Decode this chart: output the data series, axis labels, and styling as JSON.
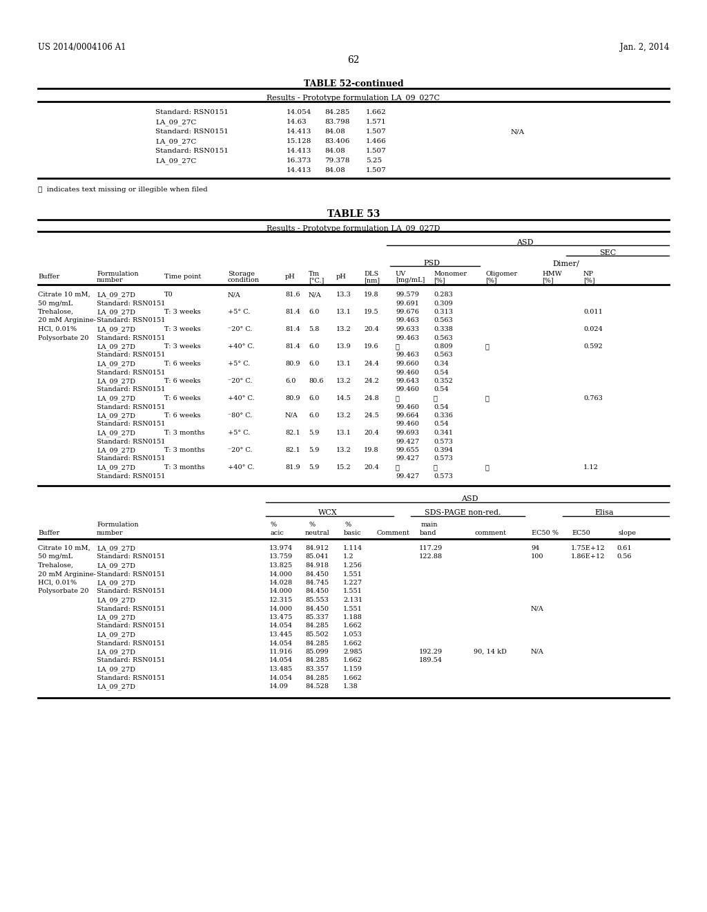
{
  "page_header_left": "US 2014/0004106 A1",
  "page_header_right": "Jan. 2, 2014",
  "page_number": "62",
  "table52_title": "TABLE 52-continued",
  "table52_subtitle": "Results - Prototype formulation LA_09_027C",
  "table52_rows": [
    [
      "Standard: RSN0151",
      "14.054",
      "84.285",
      "1.662",
      ""
    ],
    [
      "LA_09_27C",
      "14.63",
      "83.798",
      "1.571",
      ""
    ],
    [
      "Standard: RSN0151",
      "14.413",
      "84.08",
      "1.507",
      "N/A"
    ],
    [
      "LA_09_27C",
      "15.128",
      "83.406",
      "1.466",
      ""
    ],
    [
      "Standard: RSN0151",
      "14.413",
      "84.08",
      "1.507",
      ""
    ],
    [
      "LA_09_27C",
      "16.373",
      "79.378",
      "5.25",
      ""
    ],
    [
      "",
      "14.413",
      "84.08",
      "1.507",
      ""
    ]
  ],
  "footnote": "Ⓡ  indicates text missing or illegible when filed",
  "table53_title": "TABLE 53",
  "table53_subtitle": "Results - Prototype formulation LA_09_027D",
  "table53_data": [
    [
      "Citrate 10 mM,",
      "LA_09_27D",
      "T0",
      "N/A",
      "81.6",
      "N/A",
      "13.3",
      "19.8",
      "99.579",
      "0.283",
      "",
      ""
    ],
    [
      "50 mg/mL",
      "Standard: RSN0151",
      "",
      "",
      "",
      "",
      "",
      "",
      "99.691",
      "0.309",
      "",
      ""
    ],
    [
      "Trehalose,",
      "LA_09_27D",
      "T: 3 weeks",
      "+5° C.",
      "81.4",
      "6.0",
      "13.1",
      "19.5",
      "99.676",
      "0.313",
      "",
      "0.011"
    ],
    [
      "20 mM Arginine-",
      "Standard: RSN0151",
      "",
      "",
      "",
      "",
      "",
      "",
      "99.463",
      "0.563",
      "",
      ""
    ],
    [
      "HCl, 0.01%",
      "LA_09_27D",
      "T: 3 weeks",
      "⁻20° C.",
      "81.4",
      "5.8",
      "13.2",
      "20.4",
      "99.633",
      "0.338",
      "",
      "0.024"
    ],
    [
      "Polysorbate 20",
      "Standard: RSN0151",
      "",
      "",
      "",
      "",
      "",
      "",
      "99.463",
      "0.563",
      "",
      ""
    ],
    [
      "",
      "LA_09_27D",
      "T: 3 weeks",
      "+40° C.",
      "81.4",
      "6.0",
      "13.9",
      "19.6",
      "Ⓡ",
      "0.809",
      "Ⓡ",
      "0.592"
    ],
    [
      "",
      "Standard: RSN0151",
      "",
      "",
      "",
      "",
      "",
      "",
      "99.463",
      "0.563",
      "",
      ""
    ],
    [
      "",
      "LA_09_27D",
      "T: 6 weeks",
      "+5° C.",
      "80.9",
      "6.0",
      "13.1",
      "24.4",
      "99.660",
      "0.34",
      "",
      ""
    ],
    [
      "",
      "Standard: RSN0151",
      "",
      "",
      "",
      "",
      "",
      "",
      "99.460",
      "0.54",
      "",
      ""
    ],
    [
      "",
      "LA_09_27D",
      "T: 6 weeks",
      "⁻20° C. 6.0 80.6",
      "6.0",
      "13.2",
      "24.2",
      "99.643",
      "0.352",
      "",
      ""
    ],
    [
      "",
      "Standard: RSN0151",
      "",
      "",
      "",
      "",
      "",
      "",
      "99.460",
      "0.54",
      "",
      ""
    ],
    [
      "",
      "LA_09_27D",
      "T: 6 weeks",
      "+40° C.",
      "80.9",
      "6.0",
      "14.5",
      "24.8",
      "Ⓡ",
      "Ⓡ",
      "Ⓡ",
      "0.763"
    ],
    [
      "",
      "Standard: RSN0151",
      "",
      "",
      "",
      "",
      "",
      "",
      "99.460",
      "0.54",
      "",
      ""
    ],
    [
      "",
      "LA_09_27D",
      "T: 6 weeks",
      "⁻80° C.",
      "N/A",
      "6.0",
      "13.2",
      "24.5",
      "99.664",
      "0.336",
      "",
      ""
    ],
    [
      "",
      "Standard: RSN0151",
      "",
      "",
      "",
      "",
      "",
      "",
      "99.460",
      "0.54",
      "",
      ""
    ],
    [
      "",
      "LA_09_27D",
      "T: 3 months",
      "+5° C.",
      "82.1",
      "5.9",
      "13.1",
      "20.4",
      "99.693",
      "0.341",
      "",
      ""
    ],
    [
      "",
      "Standard: RSN0151",
      "",
      "",
      "",
      "",
      "",
      "",
      "99.427",
      "0.573",
      "",
      ""
    ],
    [
      "",
      "LA_09_27D",
      "T: 3 months",
      "⁻20° C.",
      "82.1",
      "5.9",
      "13.2",
      "19.8",
      "99.655",
      "0.394",
      "",
      ""
    ],
    [
      "",
      "Standard: RSN0151",
      "",
      "",
      "",
      "",
      "",
      "",
      "99.427",
      "0.573",
      "",
      ""
    ],
    [
      "",
      "LA_09_27D",
      "T: 3 months",
      "+40° C.",
      "81.9",
      "5.9",
      "15.2",
      "20.4",
      "Ⓡ",
      "Ⓡ",
      "Ⓡ",
      "1.12"
    ],
    [
      "",
      "Standard: RSN0151",
      "",
      "",
      "",
      "",
      "",
      "",
      "99.427",
      "0.573",
      "",
      ""
    ]
  ],
  "table53_data2": [
    [
      "Citrate 10 mM,",
      "LA_09_27D",
      "13.974",
      "84.912",
      "1.114",
      "",
      "117.29",
      "",
      "94",
      "1.75E+12",
      "0.61"
    ],
    [
      "50 mg/mL",
      "Standard: RSN0151",
      "13.759",
      "85.041",
      "1.2",
      "",
      "122.88",
      "",
      "100",
      "1.86E+12",
      "0.56"
    ],
    [
      "Trehalose,",
      "LA_09_27D",
      "13.825",
      "84.918",
      "1.256",
      "",
      "",
      "",
      "",
      "",
      ""
    ],
    [
      "20 mM Arginine-",
      "Standard: RSN0151",
      "14.000",
      "84.450",
      "1.551",
      "",
      "",
      "",
      "",
      "",
      ""
    ],
    [
      "HCl, 0.01%",
      "LA_09_27D",
      "14.028",
      "84.745",
      "1.227",
      "",
      "",
      "",
      "",
      "",
      ""
    ],
    [
      "Polysorbate 20",
      "Standard: RSN0151",
      "14.000",
      "84.450",
      "1.551",
      "",
      "",
      "",
      "",
      "",
      ""
    ],
    [
      "",
      "LA_09_27D",
      "12.315",
      "85.553",
      "2.131",
      "",
      "",
      "",
      "",
      "",
      ""
    ],
    [
      "",
      "Standard: RSN0151",
      "14.000",
      "84.450",
      "1.551",
      "",
      "",
      "",
      "N/A",
      "",
      ""
    ],
    [
      "",
      "LA_09_27D",
      "13.475",
      "85.337",
      "1.188",
      "",
      "",
      "",
      "",
      "",
      ""
    ],
    [
      "",
      "Standard: RSN0151",
      "14.054",
      "84.285",
      "1.662",
      "",
      "",
      "",
      "",
      "",
      ""
    ],
    [
      "",
      "LA_09_27D",
      "13.445",
      "85.502",
      "1.053",
      "",
      "",
      "",
      "",
      "",
      ""
    ],
    [
      "",
      "Standard: RSN0151",
      "14.054",
      "84.285",
      "1.662",
      "",
      "",
      "",
      "",
      "",
      ""
    ],
    [
      "",
      "LA_09_27D",
      "11.916",
      "85.099",
      "2.985",
      "",
      "192.29",
      "90, 14 kD",
      "N/A",
      "",
      ""
    ],
    [
      "",
      "Standard: RSN0151",
      "14.054",
      "84.285",
      "1.662",
      "",
      "189.54",
      "",
      "",
      "",
      ""
    ],
    [
      "",
      "LA_09_27D",
      "13.485",
      "83.357",
      "1.159",
      "",
      "",
      "",
      "",
      "",
      ""
    ],
    [
      "",
      "Standard: RSN0151",
      "14.054",
      "84.285",
      "1.662",
      "",
      "",
      "",
      "",
      "",
      ""
    ],
    [
      "",
      "LA_09_27D",
      "14.09",
      "84.528",
      "1.38",
      "",
      "",
      "",
      "",
      "",
      ""
    ]
  ]
}
